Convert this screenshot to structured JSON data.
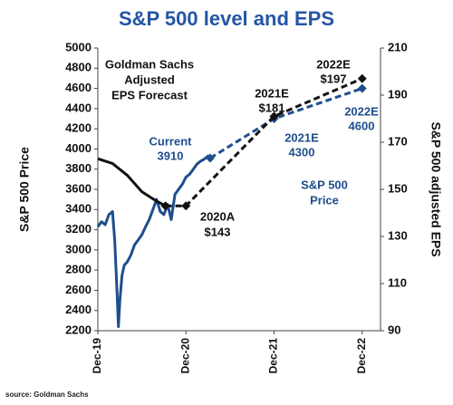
{
  "chart_data": {
    "type": "line",
    "title": "S&P 500 level and EPS",
    "ylabel": "S&P 500 Price",
    "y2label": "S&P 500 adjusted EPS",
    "source": "source: Goldman Sachs",
    "xlim": [
      0,
      38.5
    ],
    "xticks": [
      {
        "value": 0,
        "label": "Dec-19"
      },
      {
        "value": 12,
        "label": "Dec-20"
      },
      {
        "value": 24,
        "label": "Dec-21"
      },
      {
        "value": 36,
        "label": "Dec-22"
      }
    ],
    "ylim": [
      2200,
      5000
    ],
    "yticks": [
      2200,
      2400,
      2600,
      2800,
      3000,
      3200,
      3400,
      3600,
      3800,
      4000,
      4200,
      4400,
      4600,
      4800,
      5000
    ],
    "y2lim": [
      90,
      210
    ],
    "y2ticks": [
      90,
      110,
      130,
      150,
      170,
      190,
      210
    ],
    "series": [
      {
        "color": "#1f4e8c",
        "style": "solid",
        "x": [
          0,
          0.5,
          1,
          1.5,
          2,
          2.3,
          2.6,
          2.8,
          3,
          3.3,
          3.6,
          4,
          4.5,
          5,
          5.5,
          6,
          6.5,
          7,
          7.5,
          8,
          8.5,
          9,
          9.5,
          10,
          10.5,
          11,
          11.5,
          12,
          12.5,
          13,
          13.5,
          14,
          14.5,
          15,
          15.3
        ],
        "values": [
          3230,
          3280,
          3250,
          3350,
          3380,
          3100,
          2600,
          2240,
          2500,
          2750,
          2850,
          2880,
          2950,
          3050,
          3100,
          3150,
          3230,
          3300,
          3400,
          3500,
          3380,
          3350,
          3450,
          3300,
          3550,
          3600,
          3650,
          3720,
          3750,
          3800,
          3850,
          3880,
          3900,
          3930,
          3910
        ]
      },
      {
        "color": "#1f4e8c",
        "style": "dashed",
        "x": [
          15.3,
          24,
          36
        ],
        "values": [
          3910,
          4300,
          4600
        ]
      },
      {
        "color": "#111111",
        "style": "solid",
        "axis": "y2",
        "x": [
          0,
          2,
          4,
          6,
          8,
          9.2
        ],
        "values": [
          163,
          161,
          156,
          149,
          145,
          143
        ]
      },
      {
        "color": "#111111",
        "style": "dashed",
        "axis": "y2",
        "x": [
          9.2,
          12,
          24,
          36
        ],
        "values": [
          143,
          143,
          181,
          197
        ],
        "value_labels": [
          null,
          "$143",
          "$181",
          "$197"
        ]
      }
    ],
    "annotations": [
      "Goldman Sachs",
      "Adjusted",
      "EPS Forecast",
      "Current",
      "2020A",
      "2021E",
      "2021E",
      "2022E",
      "2022E",
      "S&P 500",
      "Price"
    ]
  }
}
